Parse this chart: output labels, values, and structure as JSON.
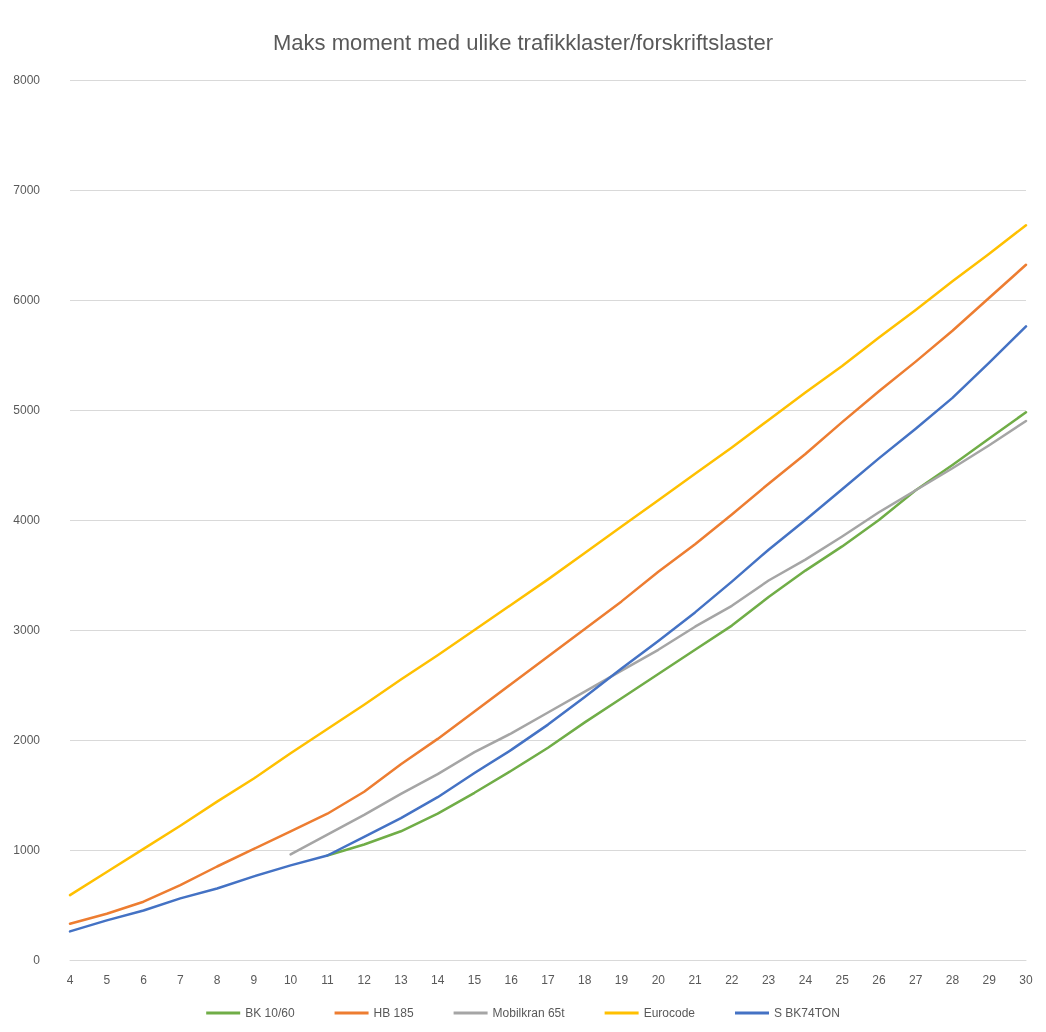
{
  "chart_data": {
    "type": "line",
    "title": "Maks moment med ulike trafikklaster/forskriftslaster",
    "categories": [
      "4",
      "5",
      "6",
      "7",
      "8",
      "9",
      "10",
      "11",
      "12",
      "13",
      "14",
      "15",
      "16",
      "17",
      "18",
      "19",
      "20",
      "21",
      "22",
      "23",
      "24",
      "25",
      "26",
      "27",
      "28",
      "29",
      "30"
    ],
    "series": [
      {
        "name": "BK 10/60",
        "color": "#70ad47",
        "values": [
          null,
          null,
          null,
          null,
          null,
          null,
          null,
          950,
          1050,
          1170,
          1330,
          1520,
          1720,
          1930,
          2160,
          2380,
          2600,
          2820,
          3040,
          3300,
          3540,
          3760,
          4000,
          4270,
          4500,
          4740,
          4980
        ]
      },
      {
        "name": "HB 185",
        "color": "#ed7d31",
        "values": [
          330,
          420,
          530,
          680,
          850,
          1010,
          1170,
          1330,
          1530,
          1780,
          2010,
          2260,
          2510,
          2760,
          3010,
          3260,
          3530,
          3780,
          4050,
          4330,
          4600,
          4890,
          5170,
          5440,
          5720,
          6020,
          6320
        ]
      },
      {
        "name": "Mobilkran 65t",
        "color": "#a5a5a5",
        "values": [
          null,
          null,
          null,
          null,
          null,
          null,
          960,
          1140,
          1320,
          1510,
          1690,
          1890,
          2060,
          2250,
          2440,
          2630,
          2820,
          3030,
          3220,
          3450,
          3640,
          3850,
          4070,
          4270,
          4470,
          4680,
          4900
        ]
      },
      {
        "name": "Eurocode",
        "color": "#ffc000",
        "values": [
          590,
          800,
          1010,
          1220,
          1440,
          1650,
          1880,
          2100,
          2320,
          2550,
          2770,
          3000,
          3230,
          3460,
          3700,
          3940,
          4180,
          4420,
          4660,
          4910,
          5160,
          5400,
          5660,
          5910,
          6170,
          6420,
          6680
        ]
      },
      {
        "name": "S BK74TON",
        "color": "#4472c4",
        "values": [
          260,
          360,
          450,
          560,
          650,
          760,
          860,
          950,
          1120,
          1290,
          1480,
          1700,
          1910,
          2140,
          2390,
          2650,
          2900,
          3160,
          3440,
          3730,
          4000,
          4280,
          4560,
          4830,
          5110,
          5430,
          5760
        ]
      }
    ],
    "ylim": [
      0,
      8000
    ],
    "yticks": [
      0,
      1000,
      2000,
      3000,
      4000,
      5000,
      6000,
      7000,
      8000
    ],
    "grid": "y",
    "legend": "bottom",
    "marker": "none",
    "line_style": "solid"
  }
}
